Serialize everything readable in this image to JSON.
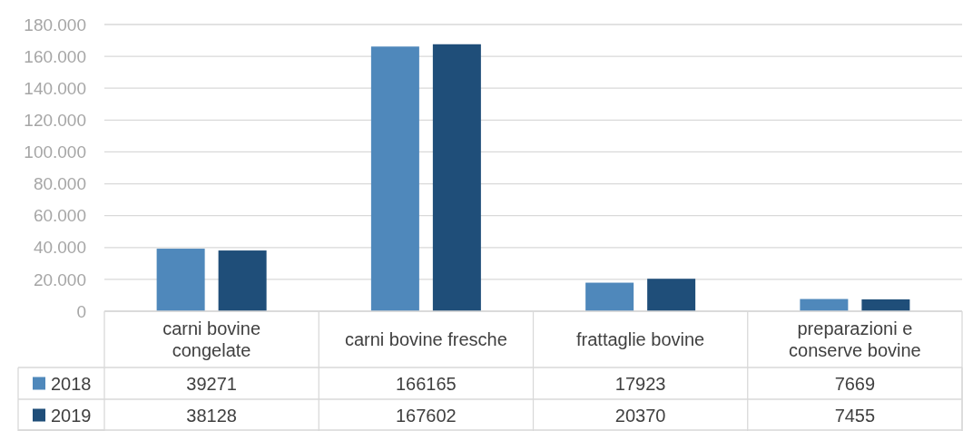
{
  "chart_data": {
    "type": "bar",
    "categories": [
      "carni bovine congelate",
      "carni bovine fresche",
      "frattaglie bovine",
      "preparazioni e conserve bovine"
    ],
    "series": [
      {
        "name": "2018",
        "color": "#4f88bb",
        "values": [
          39271,
          166165,
          17923,
          7669
        ]
      },
      {
        "name": "2019",
        "color": "#1f4e79",
        "values": [
          38128,
          167602,
          20370,
          7455
        ]
      }
    ],
    "ylim": [
      0,
      180000
    ],
    "yticks": [
      0,
      {
        "value": 20000,
        "label": "20.000"
      },
      {
        "value": 40000,
        "label": "40.000"
      },
      {
        "value": 60000,
        "label": "60.000"
      },
      {
        "value": 80000,
        "label": "80.000"
      },
      {
        "value": 100000,
        "label": "100.000"
      },
      {
        "value": 120000,
        "label": "120.000"
      },
      {
        "value": 140000,
        "label": "140.000"
      },
      {
        "value": 160000,
        "label": "160.000"
      },
      {
        "value": 180000,
        "label": "180.000"
      }
    ],
    "grid": "y",
    "data_labels": true,
    "legend": "bottom left"
  }
}
